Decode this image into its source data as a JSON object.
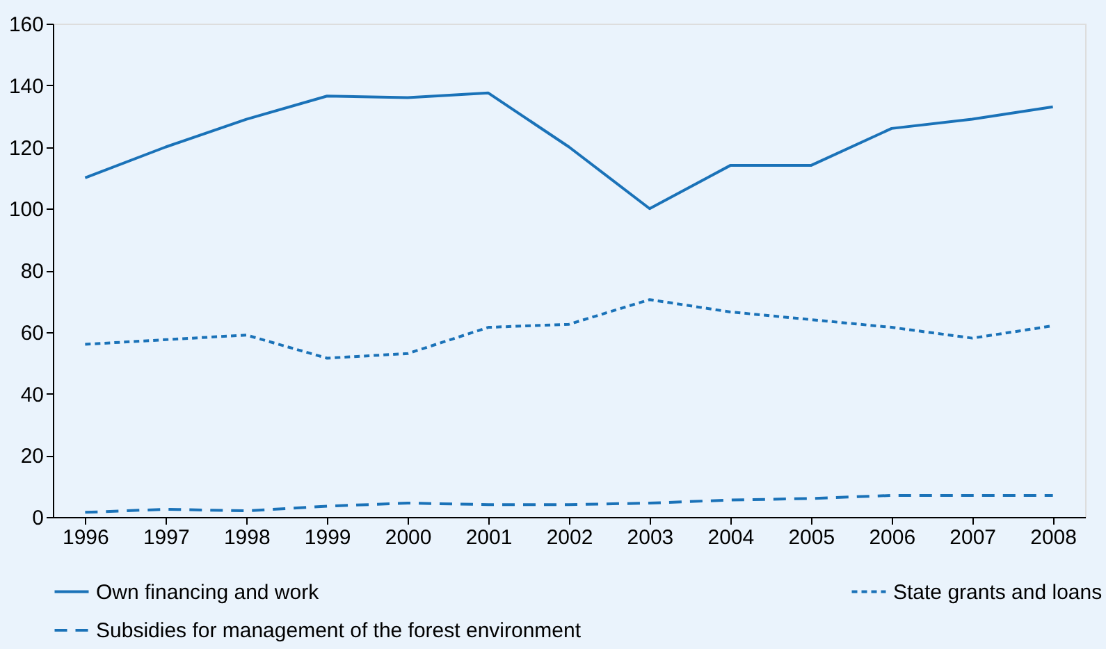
{
  "chart_data": {
    "type": "line",
    "categories": [
      "1996",
      "1997",
      "1998",
      "1999",
      "2000",
      "2001",
      "2002",
      "2003",
      "2004",
      "2005",
      "2006",
      "2007",
      "2008"
    ],
    "series": [
      {
        "name": "Own financing and work",
        "color": "#1a72b8",
        "line_style": "solid",
        "values": [
          110,
          120,
          129,
          136.5,
          136,
          137.5,
          120,
          100,
          114,
          114,
          126,
          129,
          133
        ]
      },
      {
        "name": "State grants and loans",
        "color": "#1a72b8",
        "line_style": "dotted",
        "values": [
          56,
          57.5,
          59,
          51.5,
          53,
          61.5,
          62.5,
          70.5,
          66.5,
          64,
          61.5,
          58,
          62
        ]
      },
      {
        "name": "Subsidies for management of the forest environment",
        "color": "#1a72b8",
        "line_style": "dashed",
        "values": [
          1.5,
          2.5,
          2,
          3.5,
          4.5,
          4,
          4,
          4.5,
          5.5,
          6,
          7,
          7,
          7
        ]
      }
    ],
    "ylim": [
      0,
      160
    ],
    "yticks": [
      0,
      20,
      40,
      60,
      80,
      100,
      120,
      140,
      160
    ],
    "grid": false,
    "legend": "bottom",
    "marker": "none"
  }
}
